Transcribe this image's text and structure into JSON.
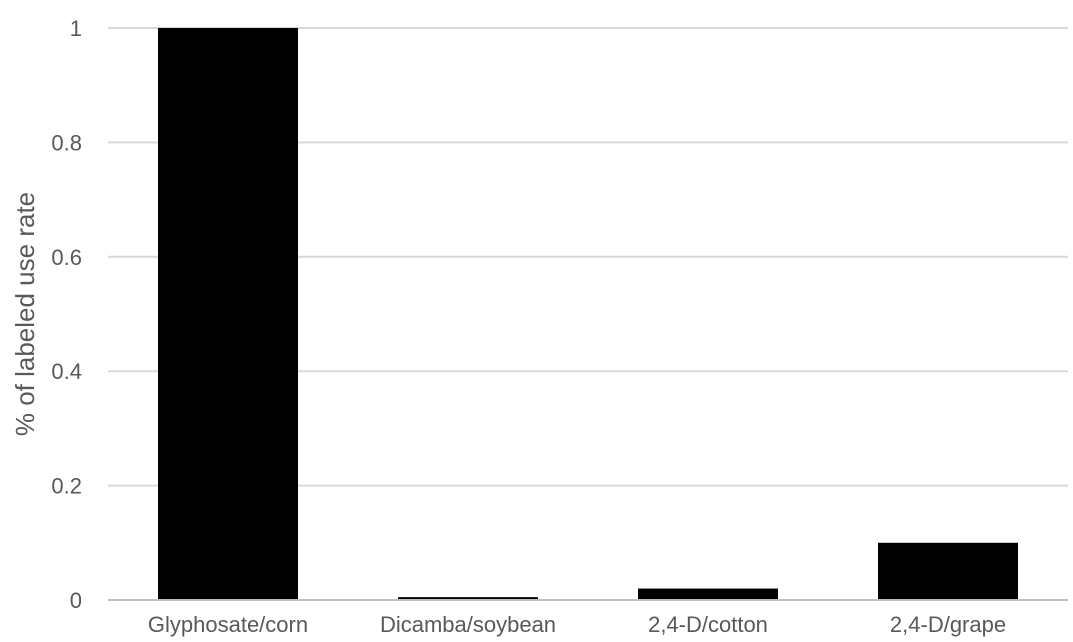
{
  "chart_data": {
    "type": "bar",
    "categories": [
      "Glyphosate/corn",
      "Dicamba/soybean",
      "2,4-D/cotton",
      "2,4-D/grape"
    ],
    "values": [
      1.0,
      0.005,
      0.02,
      0.1
    ],
    "title": "",
    "xlabel": "",
    "ylabel": "% of labeled use rate",
    "ylim": [
      0,
      1
    ],
    "yticks": [
      0,
      0.2,
      0.4,
      0.6,
      0.8,
      1
    ],
    "ytick_labels": [
      "0",
      "0.2",
      "0.4",
      "0.6",
      "0.8",
      "1"
    ],
    "grid": true,
    "legend": "none",
    "bar_color": "#000000",
    "grid_color": "#d9d9d9",
    "text_color": "#595959"
  }
}
